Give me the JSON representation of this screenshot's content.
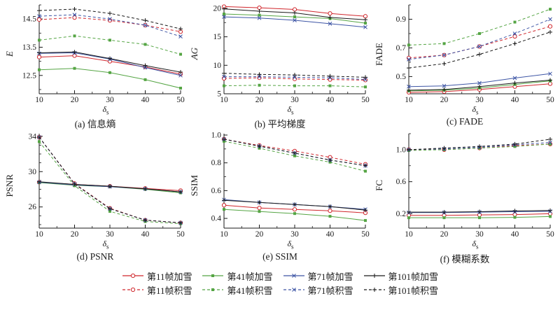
{
  "figure": {
    "xlabel": {
      "base": "δ",
      "sub": "s"
    }
  },
  "chart_data": {
    "type": "line",
    "x": [
      10,
      20,
      30,
      40,
      50
    ],
    "xtick_labels": [
      "10",
      "20",
      "30",
      "40",
      "50"
    ],
    "xlabel": {
      "base": "δ",
      "sub": "s"
    },
    "legend_position": "bottom",
    "grid": false,
    "series_meta": [
      {
        "label": "第11帧加雪",
        "color": "#d0262c",
        "dash": "solid",
        "marker": "circle-open"
      },
      {
        "label": "第41帧加雪",
        "color": "#55a544",
        "dash": "solid",
        "marker": "square"
      },
      {
        "label": "第71帧加雪",
        "color": "#3d55a5",
        "dash": "solid",
        "marker": "x"
      },
      {
        "label": "第101帧加雪",
        "color": "#1a1a1a",
        "dash": "solid",
        "marker": "plus"
      },
      {
        "label": "第11帧积雪",
        "color": "#d0262c",
        "dash": "dashed",
        "marker": "circle-open"
      },
      {
        "label": "第41帧积雪",
        "color": "#55a544",
        "dash": "dashed",
        "marker": "square"
      },
      {
        "label": "第71帧积雪",
        "color": "#3d55a5",
        "dash": "dashed",
        "marker": "x"
      },
      {
        "label": "第101帧积雪",
        "color": "#1a1a1a",
        "dash": "dashed",
        "marker": "plus"
      }
    ],
    "charts": [
      {
        "caption": "(a) 信息熵",
        "ylabel": "E",
        "ylabel_italic": true,
        "ylim": [
          11.85,
          15.0
        ],
        "yticks": [
          12.5,
          13.5,
          14.5
        ],
        "ytick_labels": [
          "12.5",
          "13.5",
          "14.5"
        ],
        "yminor_step": 0.5,
        "values": [
          [
            13.15,
            13.2,
            13.0,
            12.8,
            12.55
          ],
          [
            12.7,
            12.75,
            12.6,
            12.35,
            12.05
          ],
          [
            13.28,
            13.3,
            13.08,
            12.78,
            12.5
          ],
          [
            13.3,
            13.33,
            13.1,
            12.85,
            12.62
          ],
          [
            14.48,
            14.55,
            14.45,
            14.28,
            14.05
          ],
          [
            13.75,
            13.9,
            13.75,
            13.6,
            13.25
          ],
          [
            14.6,
            14.65,
            14.5,
            14.28,
            13.88
          ],
          [
            14.8,
            14.85,
            14.7,
            14.45,
            14.15
          ]
        ]
      },
      {
        "caption": "(b) 平均梯度",
        "ylabel": "AG",
        "ylabel_italic": true,
        "ylim": [
          5,
          20.6
        ],
        "yticks": [
          5,
          10,
          15,
          20
        ],
        "ytick_labels": [
          "5",
          "10",
          "15",
          "20"
        ],
        "yminor_step": 2.5,
        "values": [
          [
            20.3,
            20.1,
            19.8,
            19.1,
            18.6
          ],
          [
            19.0,
            18.8,
            18.5,
            18.2,
            17.4
          ],
          [
            18.5,
            18.3,
            17.9,
            17.3,
            16.7
          ],
          [
            19.9,
            19.5,
            19.2,
            18.4,
            18.0
          ],
          [
            7.7,
            7.8,
            7.6,
            7.5,
            7.4
          ],
          [
            6.4,
            6.5,
            6.4,
            6.4,
            6.2
          ],
          [
            8.0,
            8.0,
            7.9,
            7.8,
            7.5
          ],
          [
            8.6,
            8.4,
            8.3,
            8.1,
            7.9
          ]
        ]
      },
      {
        "caption": "(c) FADE",
        "ylabel": "FADE",
        "ylabel_italic": false,
        "ylim": [
          0.38,
          1.0
        ],
        "yticks": [
          0.5,
          0.7,
          0.9
        ],
        "ytick_labels": [
          "0.5",
          "0.7",
          "0.9"
        ],
        "yminor_step": 0.1,
        "values": [
          [
            0.39,
            0.395,
            0.41,
            0.43,
            0.45
          ],
          [
            0.4,
            0.405,
            0.42,
            0.445,
            0.47
          ],
          [
            0.43,
            0.435,
            0.455,
            0.49,
            0.52
          ],
          [
            0.405,
            0.41,
            0.43,
            0.455,
            0.475
          ],
          [
            0.63,
            0.65,
            0.71,
            0.78,
            0.85
          ],
          [
            0.72,
            0.73,
            0.8,
            0.88,
            0.97
          ],
          [
            0.62,
            0.65,
            0.71,
            0.8,
            0.9
          ],
          [
            0.56,
            0.59,
            0.655,
            0.73,
            0.81
          ]
        ]
      },
      {
        "caption": "(d) PSNR",
        "ylabel": "PSNR",
        "ylabel_italic": false,
        "ylim": [
          23.6,
          34.3
        ],
        "yticks": [
          26,
          30,
          34
        ],
        "ytick_labels": [
          "26",
          "30",
          "34"
        ],
        "yminor_step": 1,
        "values": [
          [
            28.8,
            28.55,
            28.35,
            28.1,
            27.85
          ],
          [
            28.75,
            28.45,
            28.3,
            28.0,
            27.6
          ],
          [
            28.8,
            28.5,
            28.3,
            28.05,
            27.7
          ],
          [
            28.85,
            28.55,
            28.35,
            28.05,
            27.7
          ],
          [
            33.9,
            28.65,
            25.85,
            24.5,
            24.2
          ],
          [
            33.4,
            28.4,
            25.5,
            24.35,
            24.1
          ],
          [
            33.9,
            28.6,
            25.8,
            24.5,
            24.2
          ],
          [
            33.9,
            28.6,
            25.8,
            24.5,
            24.2
          ]
        ]
      },
      {
        "caption": "(e) SSIM",
        "ylabel": "SSIM",
        "ylabel_italic": false,
        "ylim": [
          0.33,
          1.01
        ],
        "yticks": [
          0.4,
          0.6,
          0.8,
          1.0
        ],
        "ytick_labels": [
          "0.4",
          "0.6",
          "0.8",
          "1.0"
        ],
        "yminor_step": 0.1,
        "values": [
          [
            0.495,
            0.475,
            0.465,
            0.455,
            0.44
          ],
          [
            0.465,
            0.45,
            0.435,
            0.415,
            0.385
          ],
          [
            0.535,
            0.515,
            0.5,
            0.485,
            0.465
          ],
          [
            0.53,
            0.515,
            0.5,
            0.485,
            0.46
          ],
          [
            0.97,
            0.925,
            0.885,
            0.84,
            0.79
          ],
          [
            0.955,
            0.905,
            0.85,
            0.805,
            0.74
          ],
          [
            0.97,
            0.92,
            0.87,
            0.82,
            0.78
          ],
          [
            0.97,
            0.92,
            0.87,
            0.82,
            0.78
          ]
        ]
      },
      {
        "caption": "(f) 模糊系数",
        "ylabel": "FC",
        "ylabel_italic": false,
        "ylim": [
          0.02,
          1.2
        ],
        "yticks": [
          0.2,
          0.6,
          1.0
        ],
        "ytick_labels": [
          "0.2",
          "0.6",
          "1.0"
        ],
        "yminor_step": 0.2,
        "values": [
          [
            0.18,
            0.18,
            0.185,
            0.19,
            0.2
          ],
          [
            0.15,
            0.15,
            0.15,
            0.155,
            0.165
          ],
          [
            0.215,
            0.215,
            0.22,
            0.225,
            0.23
          ],
          [
            0.22,
            0.22,
            0.225,
            0.235,
            0.24
          ],
          [
            1.0,
            1.0,
            1.02,
            1.05,
            1.07
          ],
          [
            0.99,
            1.0,
            1.02,
            1.04,
            1.07
          ],
          [
            1.0,
            1.01,
            1.03,
            1.06,
            1.09
          ],
          [
            1.0,
            1.02,
            1.04,
            1.07,
            1.13
          ]
        ]
      }
    ]
  }
}
